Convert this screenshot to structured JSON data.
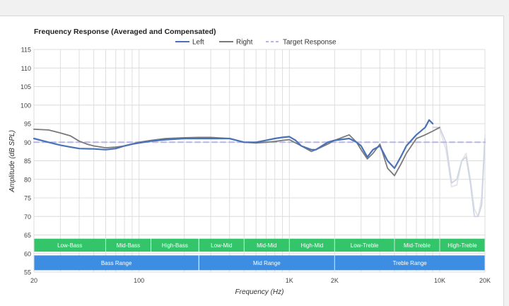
{
  "chart_data": {
    "type": "line",
    "title": "Frequency Response (Averaged and Compensated)",
    "xlabel": "Frequency (Hz)",
    "ylabel": "Amplitude (dB SPL)",
    "x_scale": "log",
    "xlim": [
      20,
      20000
    ],
    "ylim": [
      55,
      115
    ],
    "yticks": [
      55,
      60,
      65,
      70,
      75,
      80,
      85,
      90,
      95,
      100,
      105,
      110,
      115
    ],
    "xticks": [
      {
        "value": 20,
        "label": "20"
      },
      {
        "value": 100,
        "label": "100"
      },
      {
        "value": 1000,
        "label": "1K"
      },
      {
        "value": 2000,
        "label": "2K"
      },
      {
        "value": 10000,
        "label": "10K"
      },
      {
        "value": 20000,
        "label": "20K"
      }
    ],
    "grid": true,
    "legend_position": "top-center",
    "series": [
      {
        "name": "Left",
        "color": "#4a72b8",
        "style": "solid",
        "x": [
          20,
          25,
          30,
          35,
          40,
          50,
          60,
          70,
          80,
          90,
          100,
          120,
          150,
          200,
          250,
          300,
          400,
          500,
          600,
          700,
          800,
          900,
          1000,
          1100,
          1200,
          1400,
          1500,
          1800,
          2000,
          2500,
          2800,
          3000,
          3300,
          3600,
          4000,
          4500,
          5000,
          5500,
          6000,
          7000,
          8000,
          8500,
          9000
        ],
        "values": [
          91.0,
          90.0,
          89.2,
          88.7,
          88.3,
          88.2,
          88.0,
          88.3,
          89.0,
          89.5,
          89.8,
          90.3,
          90.7,
          91.0,
          91.0,
          91.0,
          91.0,
          90.0,
          90.0,
          90.5,
          91.0,
          91.3,
          91.5,
          90.5,
          89.0,
          88.0,
          88.0,
          90.0,
          90.5,
          91.0,
          90.0,
          89.0,
          86.0,
          88.0,
          89.0,
          85.0,
          83.0,
          86.0,
          89.0,
          92.0,
          94.0,
          96.0,
          95.0
        ]
      },
      {
        "name": "Right",
        "color": "#7a7a7a",
        "style": "solid",
        "x": [
          20,
          25,
          30,
          35,
          40,
          45,
          50,
          60,
          70,
          80,
          100,
          120,
          150,
          200,
          250,
          300,
          400,
          500,
          600,
          700,
          800,
          900,
          1000,
          1200,
          1400,
          1500,
          1800,
          2000,
          2500,
          2800,
          3000,
          3300,
          3600,
          4000,
          4500,
          5000,
          5500,
          6000,
          7000,
          8000,
          9000,
          10000
        ],
        "values": [
          93.5,
          93.3,
          92.5,
          91.7,
          90.3,
          89.5,
          89.0,
          88.5,
          88.7,
          89.0,
          90.0,
          90.5,
          91.0,
          91.2,
          91.3,
          91.3,
          91.0,
          90.0,
          89.8,
          90.0,
          90.2,
          90.5,
          90.7,
          89.0,
          87.5,
          88.0,
          89.5,
          90.5,
          92.0,
          90.0,
          88.0,
          85.5,
          87.0,
          89.5,
          83.0,
          81.0,
          84.0,
          87.0,
          91.0,
          92.0,
          93.0,
          94.0
        ]
      },
      {
        "name": "Target Response",
        "color": "#b4b6ee",
        "style": "dashed",
        "x": [
          20,
          20000
        ],
        "values": [
          90,
          90
        ]
      },
      {
        "name": "",
        "color": "#cfd5e6",
        "style": "solid",
        "x": [
          9000,
          10000,
          11000,
          12000,
          13000,
          14000,
          15000,
          16000,
          17000,
          18000,
          19000,
          20000
        ],
        "values": [
          94.0,
          94.0,
          90.0,
          79.0,
          80.0,
          85.0,
          86.0,
          79.0,
          70.0,
          70.0,
          73.0,
          91.0
        ]
      },
      {
        "name": "",
        "color": "#e4e4e4",
        "style": "solid",
        "x": [
          9500,
          10000,
          11000,
          12000,
          13000,
          14000,
          15000,
          16000,
          17000,
          18000,
          19000,
          20000
        ],
        "values": [
          94.0,
          93.5,
          88.0,
          78.0,
          78.5,
          85.0,
          87.0,
          80.0,
          72.0,
          70.0,
          75.0,
          92.0
        ]
      }
    ],
    "bands": [
      {
        "row": 0,
        "label": "Low-Bass",
        "x0": 20,
        "x1": 60
      },
      {
        "row": 0,
        "label": "Mid-Bass",
        "x0": 60,
        "x1": 120
      },
      {
        "row": 0,
        "label": "High-Bass",
        "x0": 120,
        "x1": 250
      },
      {
        "row": 0,
        "label": "Low-Mid",
        "x0": 250,
        "x1": 500
      },
      {
        "row": 0,
        "label": "Mid-Mid",
        "x0": 500,
        "x1": 1000
      },
      {
        "row": 0,
        "label": "High-Mid",
        "x0": 1000,
        "x1": 2000
      },
      {
        "row": 0,
        "label": "Low-Treble",
        "x0": 2000,
        "x1": 5000
      },
      {
        "row": 0,
        "label": "Mid-Treble",
        "x0": 5000,
        "x1": 10000
      },
      {
        "row": 0,
        "label": "High-Treble",
        "x0": 10000,
        "x1": 20000
      },
      {
        "row": 1,
        "label": "Bass Range",
        "x0": 20,
        "x1": 250
      },
      {
        "row": 1,
        "label": "Mid Range",
        "x0": 250,
        "x1": 2000
      },
      {
        "row": 1,
        "label": "Treble Range",
        "x0": 2000,
        "x1": 20000
      }
    ],
    "band_colors": {
      "row0": "#34c46a",
      "row1": "#3d8ee3"
    }
  }
}
